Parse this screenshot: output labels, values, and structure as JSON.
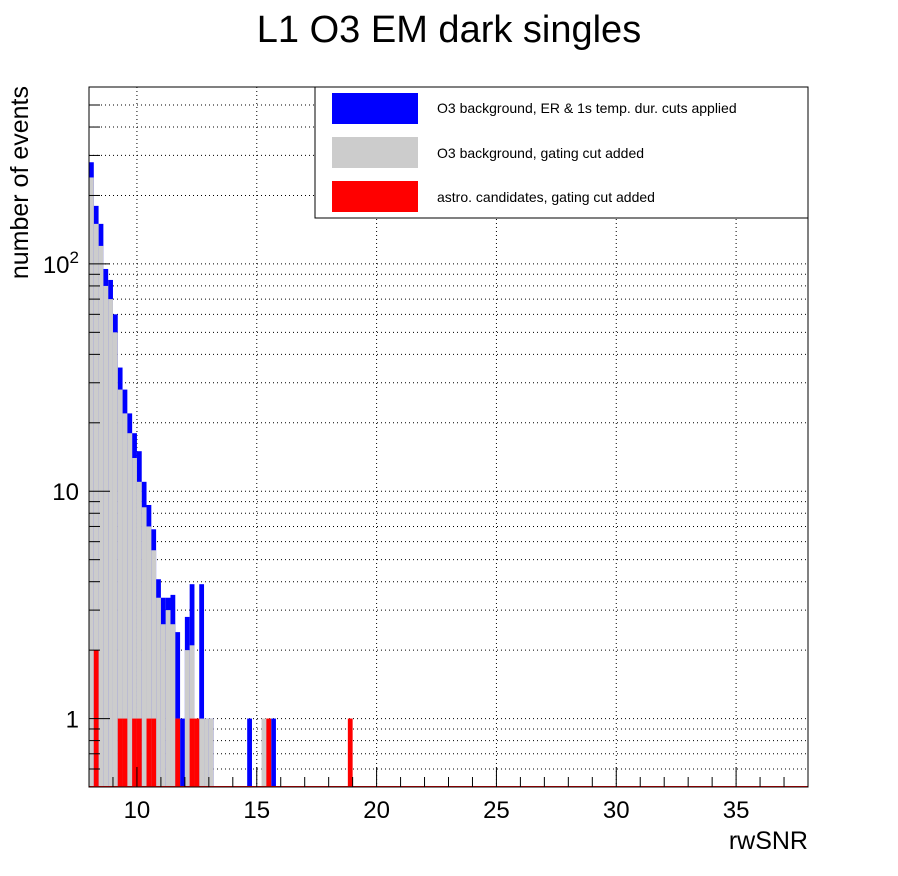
{
  "chart_data": {
    "type": "bar",
    "title": "L1 O3 EM dark singles",
    "xlabel": "rwSNR",
    "ylabel": "number of events",
    "xlim": [
      8,
      38
    ],
    "ylim": [
      0.5,
      600
    ],
    "yscale": "log",
    "x_ticks": [
      10,
      15,
      20,
      25,
      30,
      35
    ],
    "x_tick_labels": [
      "10",
      "15",
      "20",
      "25",
      "30",
      "35"
    ],
    "y_ticks": [
      1,
      10,
      100
    ],
    "y_tick_labels": [
      "1",
      "10",
      "10²"
    ],
    "y_tick_label_parts": [
      {
        "base": "1",
        "exp": ""
      },
      {
        "base": "10",
        "exp": ""
      },
      {
        "base": "10",
        "exp": "2"
      }
    ],
    "grid": true,
    "legend_position": "top-right",
    "bin_width": 0.2,
    "series": [
      {
        "name": "O3 background, ER & 1s temp. dur. cuts applied",
        "color": "#0000ff",
        "bins": [
          [
            8.0,
            280
          ],
          [
            8.2,
            180
          ],
          [
            8.4,
            150
          ],
          [
            8.6,
            95
          ],
          [
            8.8,
            85
          ],
          [
            9.0,
            60
          ],
          [
            9.2,
            35
          ],
          [
            9.4,
            28
          ],
          [
            9.6,
            22
          ],
          [
            9.8,
            18
          ],
          [
            10.0,
            15
          ],
          [
            10.2,
            11
          ],
          [
            10.4,
            8.7
          ],
          [
            10.6,
            6.8
          ],
          [
            10.8,
            4.1
          ],
          [
            11.0,
            3.4
          ],
          [
            11.2,
            3.4
          ],
          [
            11.4,
            3.5
          ],
          [
            11.6,
            2.4
          ],
          [
            11.8,
            1
          ],
          [
            12.0,
            2.8
          ],
          [
            12.2,
            3.9
          ],
          [
            12.4,
            1
          ],
          [
            12.6,
            3.9
          ],
          [
            12.8,
            1
          ],
          [
            13.0,
            1
          ],
          [
            14.6,
            1
          ],
          [
            15.4,
            1
          ],
          [
            15.6,
            1
          ]
        ]
      },
      {
        "name": "O3 background, gating cut added",
        "color": "#cccccc",
        "bins": [
          [
            8.0,
            240
          ],
          [
            8.2,
            150
          ],
          [
            8.4,
            120
          ],
          [
            8.6,
            80
          ],
          [
            8.8,
            70
          ],
          [
            9.0,
            50
          ],
          [
            9.2,
            28
          ],
          [
            9.4,
            22
          ],
          [
            9.6,
            18
          ],
          [
            9.8,
            14
          ],
          [
            10.0,
            11
          ],
          [
            10.2,
            8.5
          ],
          [
            10.4,
            7
          ],
          [
            10.6,
            5.5
          ],
          [
            10.8,
            3.4
          ],
          [
            11.0,
            2.6
          ],
          [
            11.2,
            3.0
          ],
          [
            11.4,
            2.6
          ],
          [
            11.6,
            1
          ],
          [
            12.0,
            2.0
          ],
          [
            12.2,
            2.1
          ],
          [
            12.4,
            1
          ],
          [
            12.6,
            1
          ],
          [
            12.8,
            1
          ],
          [
            13.0,
            1
          ],
          [
            15.2,
            1
          ],
          [
            15.4,
            1
          ]
        ]
      },
      {
        "name": "astro. candidates, gating cut added",
        "color": "#ff0000",
        "bins": [
          [
            8.2,
            2
          ],
          [
            9.2,
            1
          ],
          [
            9.4,
            1
          ],
          [
            9.8,
            1
          ],
          [
            10.0,
            1
          ],
          [
            10.4,
            1
          ],
          [
            10.6,
            1
          ],
          [
            11.6,
            1
          ],
          [
            12.2,
            1
          ],
          [
            12.4,
            1
          ],
          [
            15.4,
            1
          ],
          [
            18.8,
            1
          ]
        ]
      }
    ]
  }
}
